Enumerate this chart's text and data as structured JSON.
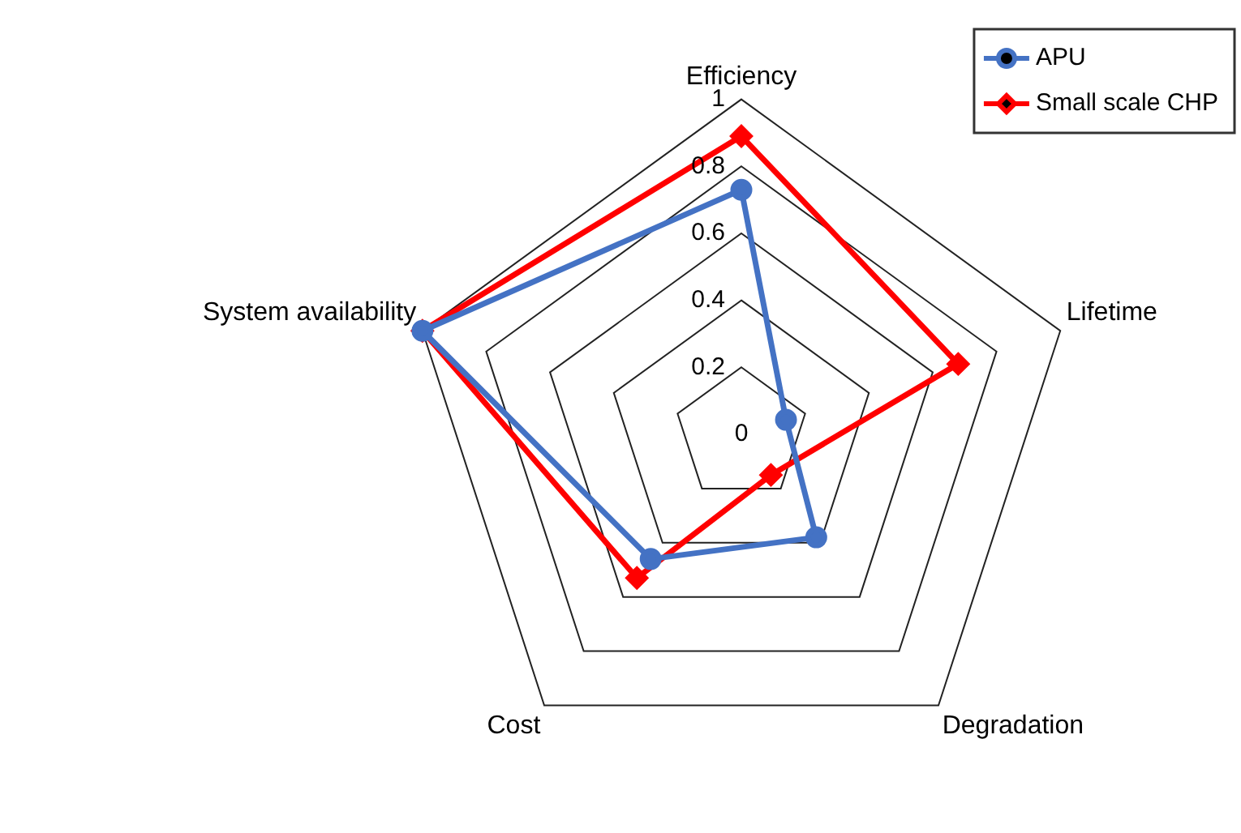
{
  "chart_data": {
    "type": "radar",
    "categories": [
      "Efficiency",
      "Lifetime",
      "Degradation",
      "Cost",
      "System availability"
    ],
    "ylim": [
      0,
      1
    ],
    "yticks": [
      0,
      0.2,
      0.4,
      0.6,
      0.8,
      1
    ],
    "grid": true,
    "legend": "top right",
    "series": [
      {
        "name": "APU",
        "color": "#4472c4",
        "marker": "circle",
        "values": [
          0.73,
          0.14,
          0.38,
          0.46,
          1
        ]
      },
      {
        "name": "Small scale CHP",
        "color": "#ff0000",
        "marker": "diamond",
        "values": [
          0.89,
          0.68,
          0.15,
          0.53,
          1
        ]
      }
    ]
  }
}
